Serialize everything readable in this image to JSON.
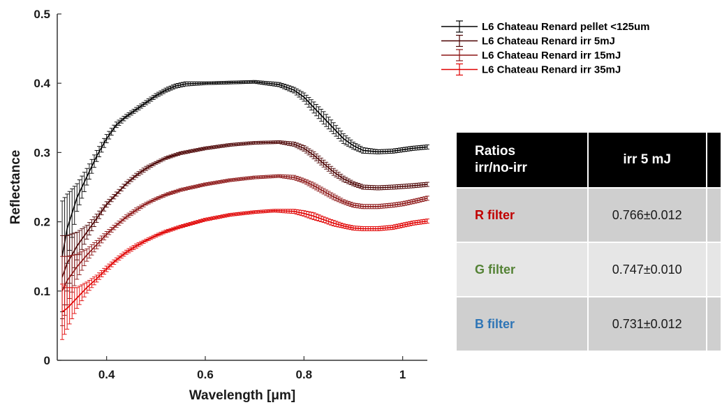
{
  "chart_data": {
    "type": "line",
    "title": "",
    "xlabel": "Wavelength [μm]",
    "ylabel": "Reflectance",
    "xlim": [
      0.3,
      1.05
    ],
    "ylim": [
      0,
      0.5
    ],
    "xticks": [
      0.4,
      0.6,
      0.8,
      1
    ],
    "xtick_labels": [
      "0.4",
      "0.6",
      "0.8",
      "1"
    ],
    "yticks": [
      0,
      0.1,
      0.2,
      0.3,
      0.4,
      0.5
    ],
    "ytick_labels": [
      "0",
      "0.1",
      "0.2",
      "0.3",
      "0.4",
      "0.5"
    ],
    "grid": false,
    "legend_position": "top-right outside",
    "series": [
      {
        "name": "L6 Chateau Renard pellet <125um",
        "color": "#000000",
        "x": [
          0.31,
          0.32,
          0.34,
          0.36,
          0.38,
          0.4,
          0.42,
          0.44,
          0.46,
          0.48,
          0.5,
          0.52,
          0.54,
          0.56,
          0.6,
          0.65,
          0.7,
          0.75,
          0.78,
          0.8,
          0.82,
          0.84,
          0.86,
          0.88,
          0.9,
          0.92,
          0.95,
          0.98,
          1.0,
          1.02,
          1.05
        ],
        "y": [
          0.15,
          0.19,
          0.235,
          0.265,
          0.295,
          0.32,
          0.34,
          0.352,
          0.362,
          0.372,
          0.382,
          0.39,
          0.396,
          0.399,
          0.4,
          0.401,
          0.402,
          0.398,
          0.39,
          0.38,
          0.365,
          0.35,
          0.335,
          0.32,
          0.31,
          0.303,
          0.301,
          0.302,
          0.304,
          0.306,
          0.308
        ],
        "err": [
          0.08,
          0.05,
          0.02,
          0.012,
          0.008,
          0.006,
          0.004,
          0.003,
          0.003,
          0.003,
          0.003,
          0.003,
          0.003,
          0.003,
          0.002,
          0.002,
          0.002,
          0.003,
          0.004,
          0.006,
          0.008,
          0.009,
          0.008,
          0.007,
          0.005,
          0.004,
          0.003,
          0.003,
          0.003,
          0.003,
          0.003
        ]
      },
      {
        "name": "L6 Chateau Renard irr 5mJ",
        "color": "#4a0000",
        "x": [
          0.31,
          0.32,
          0.34,
          0.36,
          0.38,
          0.4,
          0.42,
          0.44,
          0.46,
          0.48,
          0.5,
          0.52,
          0.55,
          0.6,
          0.65,
          0.7,
          0.75,
          0.78,
          0.8,
          0.82,
          0.84,
          0.86,
          0.88,
          0.9,
          0.92,
          0.95,
          0.98,
          1.0,
          1.02,
          1.05
        ],
        "y": [
          0.12,
          0.14,
          0.165,
          0.185,
          0.205,
          0.225,
          0.24,
          0.255,
          0.267,
          0.277,
          0.285,
          0.292,
          0.299,
          0.306,
          0.311,
          0.314,
          0.315,
          0.312,
          0.306,
          0.296,
          0.284,
          0.272,
          0.262,
          0.255,
          0.25,
          0.249,
          0.25,
          0.251,
          0.252,
          0.254
        ],
        "err": [
          0.06,
          0.04,
          0.02,
          0.01,
          0.006,
          0.004,
          0.003,
          0.003,
          0.003,
          0.003,
          0.002,
          0.002,
          0.002,
          0.002,
          0.002,
          0.002,
          0.002,
          0.003,
          0.004,
          0.005,
          0.005,
          0.005,
          0.004,
          0.003,
          0.003,
          0.003,
          0.003,
          0.003,
          0.003,
          0.003
        ]
      },
      {
        "name": "L6 Chateau Renard irr 15mJ",
        "color": "#8b1414",
        "x": [
          0.31,
          0.32,
          0.34,
          0.36,
          0.38,
          0.4,
          0.42,
          0.44,
          0.46,
          0.48,
          0.5,
          0.52,
          0.55,
          0.6,
          0.65,
          0.7,
          0.75,
          0.78,
          0.8,
          0.82,
          0.84,
          0.86,
          0.88,
          0.9,
          0.92,
          0.95,
          0.98,
          1.0,
          1.02,
          1.05
        ],
        "y": [
          0.1,
          0.115,
          0.135,
          0.152,
          0.167,
          0.182,
          0.195,
          0.207,
          0.217,
          0.226,
          0.233,
          0.239,
          0.246,
          0.254,
          0.26,
          0.264,
          0.266,
          0.264,
          0.259,
          0.252,
          0.244,
          0.236,
          0.229,
          0.224,
          0.222,
          0.222,
          0.224,
          0.226,
          0.229,
          0.234
        ],
        "err": [
          0.05,
          0.035,
          0.018,
          0.009,
          0.006,
          0.004,
          0.003,
          0.003,
          0.003,
          0.002,
          0.002,
          0.002,
          0.002,
          0.002,
          0.002,
          0.002,
          0.002,
          0.003,
          0.003,
          0.004,
          0.004,
          0.004,
          0.003,
          0.003,
          0.003,
          0.003,
          0.003,
          0.003,
          0.003,
          0.003
        ]
      },
      {
        "name": "L6 Chateau Renard irr 35mJ",
        "color": "#e00000",
        "x": [
          0.31,
          0.32,
          0.34,
          0.36,
          0.38,
          0.4,
          0.42,
          0.44,
          0.46,
          0.48,
          0.5,
          0.52,
          0.55,
          0.6,
          0.65,
          0.7,
          0.74,
          0.78,
          0.8,
          0.82,
          0.84,
          0.86,
          0.88,
          0.9,
          0.92,
          0.95,
          0.98,
          1.0,
          1.02,
          1.05
        ],
        "y": [
          0.07,
          0.075,
          0.09,
          0.105,
          0.118,
          0.132,
          0.145,
          0.156,
          0.165,
          0.173,
          0.18,
          0.186,
          0.193,
          0.203,
          0.21,
          0.214,
          0.216,
          0.215,
          0.212,
          0.208,
          0.203,
          0.198,
          0.194,
          0.191,
          0.19,
          0.19,
          0.192,
          0.195,
          0.198,
          0.201
        ],
        "err": [
          0.04,
          0.03,
          0.015,
          0.008,
          0.005,
          0.004,
          0.003,
          0.003,
          0.003,
          0.002,
          0.002,
          0.002,
          0.002,
          0.002,
          0.002,
          0.002,
          0.002,
          0.003,
          0.004,
          0.005,
          0.004,
          0.004,
          0.003,
          0.003,
          0.003,
          0.003,
          0.003,
          0.003,
          0.003,
          0.003
        ]
      }
    ]
  },
  "table": {
    "header_first": [
      "Ratios",
      "irr/no-irr"
    ],
    "header_cols": [
      "irr 5 mJ"
    ],
    "rows": [
      {
        "label": "R filter",
        "color": "#c00000",
        "values": [
          "0.766±0.012"
        ]
      },
      {
        "label": "G filter",
        "color": "#548235",
        "values": [
          "0.747±0.010"
        ]
      },
      {
        "label": "B filter",
        "color": "#2e75b6",
        "values": [
          "0.731±0.012"
        ]
      }
    ]
  }
}
